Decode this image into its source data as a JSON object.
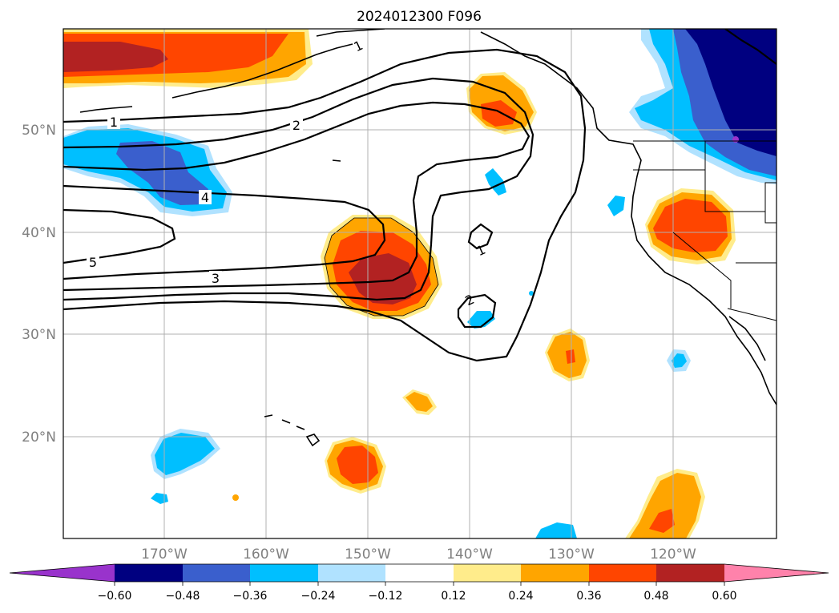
{
  "title": "2024012300 F096",
  "colors": {
    "n060_plus": "#9933cc",
    "n048": "#000080",
    "n036": "#3a5fcd",
    "n024": "#00bfff",
    "n012": "#b0e2ff",
    "neutral": "#ffffff",
    "p012": "#ffec8b",
    "p024": "#ffa500",
    "p036": "#ff4500",
    "p048": "#b22222",
    "p060_plus": "#ff82ab"
  },
  "lat_labels": [
    "50°N",
    "40°N",
    "30°N",
    "20°N"
  ],
  "lon_labels": [
    "170°W",
    "160°W",
    "150°W",
    "140°W",
    "130°W",
    "120°W"
  ],
  "colorbar": {
    "ticks": [
      "−0.60",
      "−0.48",
      "−0.36",
      "−0.24",
      "−0.12",
      "0.12",
      "0.24",
      "0.36",
      "0.48",
      "0.60"
    ],
    "extend": "both"
  },
  "contour_labels": [
    "1",
    "2",
    "4",
    "5",
    "3",
    "1",
    "2",
    "1"
  ]
}
